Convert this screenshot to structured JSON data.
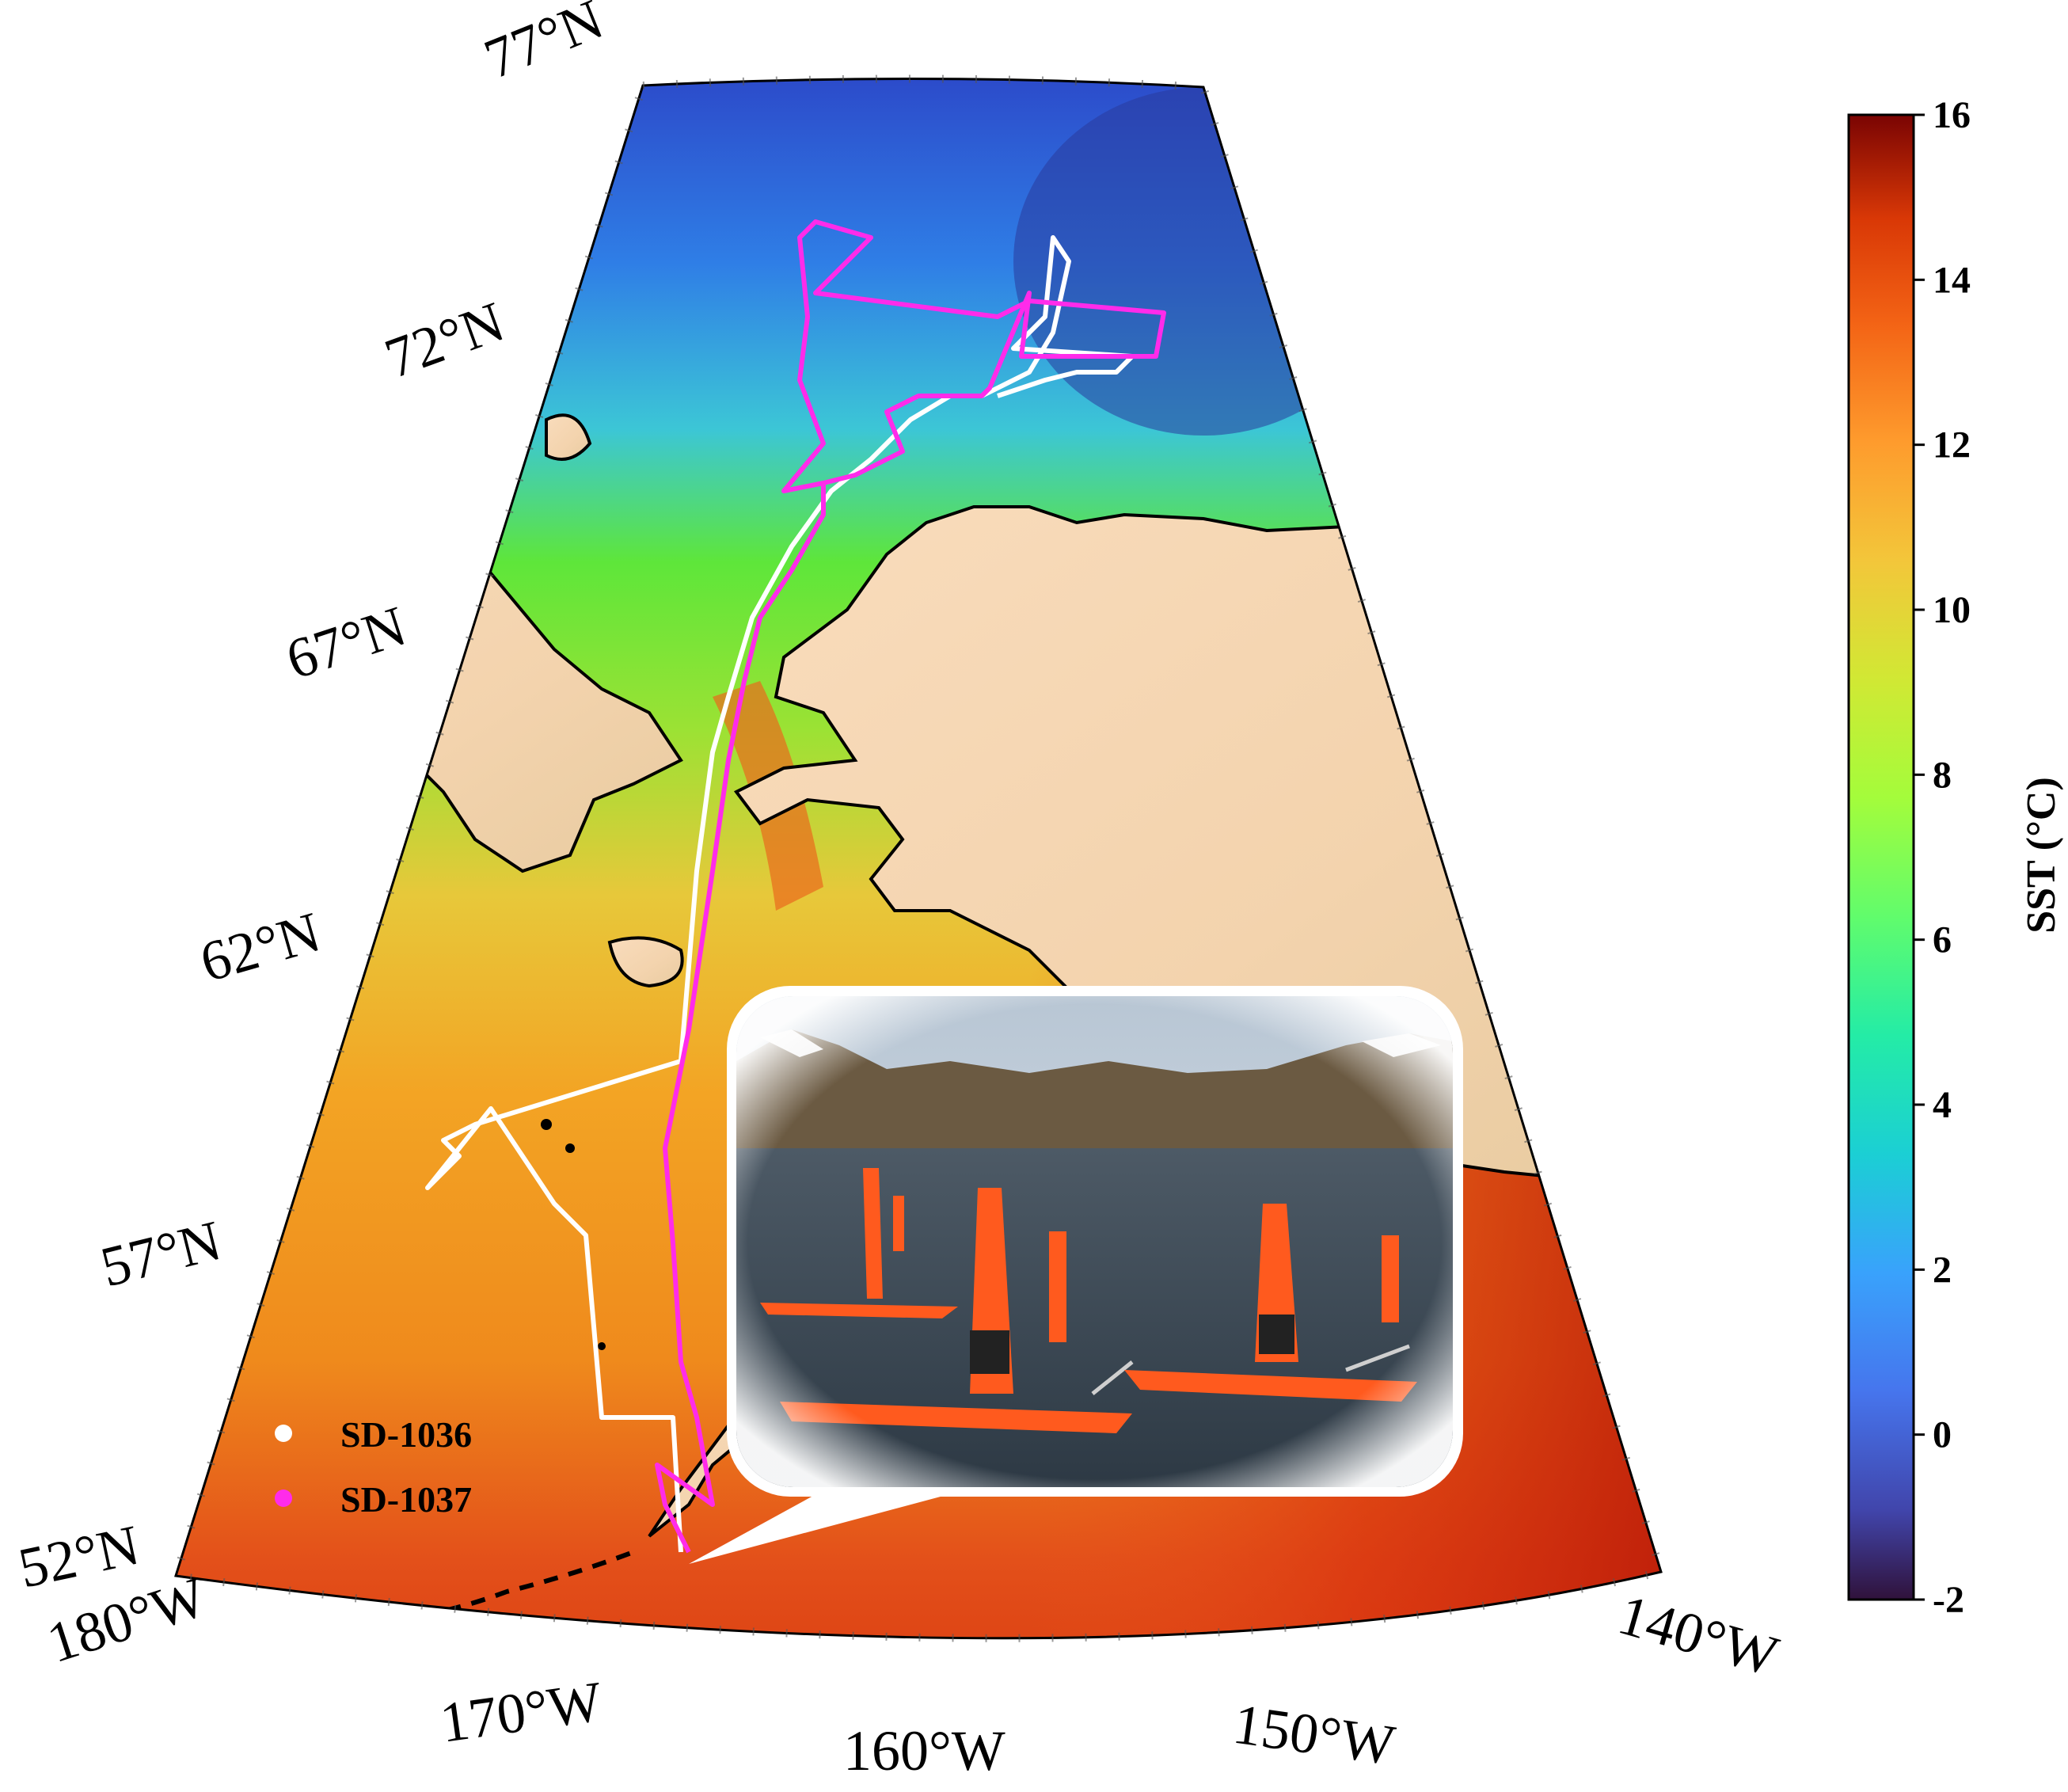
{
  "map": {
    "latitude_labels": [
      "52°N",
      "57°N",
      "62°N",
      "67°N",
      "72°N",
      "77°N"
    ],
    "longitude_labels": [
      "180°W",
      "170°W",
      "160°W",
      "150°W",
      "140°W"
    ],
    "variable": "SST",
    "colors": {
      "ocean_cold": "#2e5bd8",
      "ocean_mid": "#4fe04a",
      "ocean_warm": "#f5a21e",
      "ocean_hot": "#d8260c",
      "land": "#f8d7b4",
      "coastline": "#000000",
      "sd1036_track": "#ffffff",
      "sd1037_track": "#ff2bea"
    }
  },
  "legend": {
    "items": [
      {
        "label": "SD-1036",
        "color": "#ffffff"
      },
      {
        "label": "SD-1037",
        "color": "#ff2bea"
      }
    ]
  },
  "colorbar": {
    "title": "SST (°C)",
    "ticks": [
      "16",
      "14",
      "12",
      "10",
      "8",
      "6",
      "4",
      "2",
      "0",
      "-2"
    ],
    "min": -2,
    "max": 16
  },
  "inset": {
    "description_icon": "saildrone-photo-icon"
  }
}
